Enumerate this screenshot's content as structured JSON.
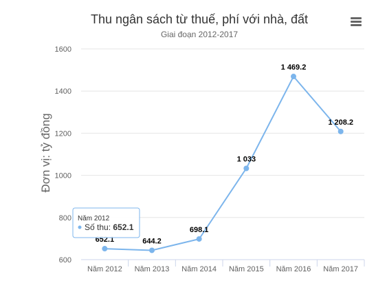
{
  "menu_icon": "hamburger-menu-icon",
  "colors": {
    "series": "#7cb5ec",
    "grid": "#e6e6e6",
    "axis": "#ccd6eb"
  },
  "chart_data": {
    "type": "line",
    "title": "Thu ngân sách từ thuế, phí với nhà, đất",
    "subtitle": "Giai đoạn 2012-2017",
    "ylabel": "Đơn vị: tỷ đồng",
    "xlabel": "",
    "categories": [
      "Năm 2012",
      "Năm 2013",
      "Năm 2014",
      "Năm 2015",
      "Năm 2016",
      "Năm 2017"
    ],
    "ylim": [
      600,
      1600
    ],
    "yticks": [
      "600",
      "800",
      "1000",
      "1200",
      "1400",
      "1600"
    ],
    "grid": true,
    "series": [
      {
        "name": "Số thu",
        "values": [
          652.1,
          644.2,
          698.1,
          1033,
          1469.2,
          1208.2
        ],
        "labels": [
          "652.1",
          "644.2",
          "698.1",
          "1 033",
          "1 469.2",
          "1 208.2"
        ]
      }
    ],
    "tooltip": {
      "header": "Năm 2012",
      "series_label": "Số thu: ",
      "value": "652.1"
    }
  }
}
